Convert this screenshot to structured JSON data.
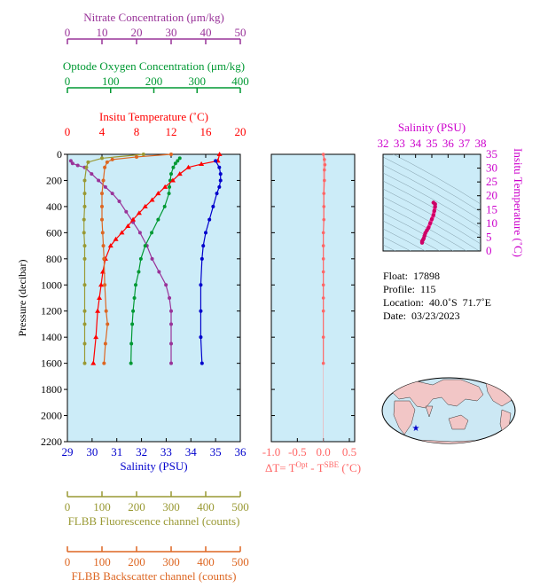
{
  "chart_data": [
    {
      "type": "line",
      "panel": "profiles",
      "y_axis": {
        "label": "Pressure (decibar)",
        "range": [
          0,
          2200
        ],
        "inverted": true,
        "ticks": [
          0,
          200,
          400,
          600,
          800,
          1000,
          1200,
          1400,
          1600,
          1800,
          2000,
          2200
        ]
      },
      "top_axes": [
        {
          "label": "Nitrate Concentration (μm/kg)",
          "range": [
            0,
            50
          ],
          "ticks": [
            0,
            10,
            20,
            30,
            40,
            50
          ],
          "color": "#993399"
        },
        {
          "label": "Optode Oxygen Concentration (μm/kg)",
          "range": [
            0,
            400
          ],
          "ticks": [
            0,
            100,
            200,
            300,
            400
          ],
          "color": "#009933"
        },
        {
          "label": "Insitu Temperature (˚C)",
          "range": [
            0,
            20
          ],
          "ticks": [
            0,
            4,
            8,
            12,
            16,
            20
          ],
          "color": "#ff0000"
        }
      ],
      "bottom_axes": [
        {
          "label": "Salinity (PSU)",
          "range": [
            29,
            36
          ],
          "ticks": [
            29,
            30,
            31,
            32,
            33,
            34,
            35,
            36
          ],
          "color": "#0000cc"
        },
        {
          "label": "FLBB Fluorescence channel (counts)",
          "range": [
            0,
            500
          ],
          "ticks": [
            0,
            100,
            200,
            300,
            400,
            500
          ],
          "color": "#999933"
        },
        {
          "label": "FLBB Backscatter channel (counts)",
          "range": [
            0,
            500
          ],
          "ticks": [
            0,
            100,
            200,
            300,
            400,
            500
          ],
          "color": "#dd6622"
        }
      ],
      "series": [
        {
          "name": "Nitrate Concentration",
          "color": "#993399",
          "axis": "Nitrate Concentration (μm/kg)",
          "x": [
            1,
            1.5,
            3,
            5,
            7,
            9,
            11,
            13,
            15,
            17,
            19,
            21,
            23,
            24.5,
            26.5,
            28.5,
            29.5,
            30,
            30,
            30,
            30
          ],
          "p": [
            50,
            70,
            85,
            100,
            150,
            200,
            250,
            300,
            360,
            440,
            520,
            600,
            700,
            800,
            900,
            1000,
            1100,
            1200,
            1300,
            1450,
            1600
          ]
        },
        {
          "name": "Optode Oxygen Concentration",
          "color": "#009933",
          "axis": "Optode Oxygen Concentration (μm/kg)",
          "x": [
            260,
            255,
            250,
            245,
            240,
            238,
            236,
            235,
            225,
            210,
            195,
            180,
            170,
            165,
            158,
            155,
            152,
            150,
            148,
            147
          ],
          "p": [
            30,
            50,
            70,
            100,
            150,
            200,
            250,
            300,
            400,
            500,
            600,
            700,
            800,
            900,
            1000,
            1100,
            1200,
            1300,
            1450,
            1600
          ]
        },
        {
          "name": "Insitu Temperature",
          "color": "#ff0000",
          "axis": "Insitu Temperature (˚C)",
          "x": [
            17.6,
            17.4,
            15.5,
            14,
            13,
            12.2,
            11.3,
            10.5,
            9.8,
            9,
            8.3,
            7.6,
            7,
            6.3,
            5.6,
            5,
            4.4,
            4.1,
            3.9,
            3.7,
            3.5,
            3.3,
            3
          ],
          "p": [
            0,
            50,
            75,
            100,
            150,
            200,
            250,
            300,
            350,
            400,
            450,
            500,
            550,
            600,
            650,
            700,
            800,
            900,
            1000,
            1100,
            1200,
            1400,
            1600
          ]
        },
        {
          "name": "Salinity",
          "color": "#0000cc",
          "axis": "Salinity (PSU)",
          "x": [
            35.0,
            35.15,
            35.2,
            35.2,
            35.15,
            35.05,
            34.9,
            34.75,
            34.6,
            34.5,
            34.45,
            34.4,
            34.4,
            34.4,
            34.45
          ],
          "p": [
            50,
            100,
            150,
            200,
            250,
            300,
            400,
            500,
            600,
            700,
            800,
            1000,
            1200,
            1400,
            1600
          ]
        },
        {
          "name": "FLBB Fluorescence",
          "color": "#999933",
          "axis": "FLBB Fluorescence channel (counts)",
          "x": [
            220,
            100,
            60,
            55,
            50,
            50,
            50,
            48,
            48,
            50,
            50,
            50,
            50,
            50,
            50,
            50
          ],
          "p": [
            0,
            30,
            60,
            100,
            200,
            300,
            400,
            500,
            600,
            700,
            800,
            1000,
            1200,
            1300,
            1450,
            1600
          ]
        },
        {
          "name": "FLBB Backscatter",
          "color": "#dd6622",
          "axis": "FLBB Backscatter channel (counts)",
          "x": [
            300,
            200,
            130,
            115,
            108,
            104,
            100,
            100,
            100,
            102,
            104,
            106,
            108,
            112,
            116,
            110,
            106
          ],
          "p": [
            0,
            20,
            40,
            60,
            100,
            200,
            300,
            400,
            500,
            600,
            700,
            800,
            1000,
            1200,
            1300,
            1450,
            1600
          ]
        }
      ]
    },
    {
      "type": "line",
      "panel": "temperature-difference",
      "x_axis": {
        "label_main": "ΔT= T",
        "label_sup1": "Opt",
        "label_mid": " - T",
        "label_sup2": "SBE",
        "label_end": " (˚C)",
        "range": [
          -1.0,
          0.5
        ],
        "ticks": [
          -1.0,
          -0.5,
          0.0,
          0.5
        ],
        "tick_labels": [
          "-1.0",
          "-0.5",
          "0.0",
          "0.5"
        ],
        "color": "#ff6666"
      },
      "series": [
        {
          "name": "ΔT",
          "color": "#ff6666",
          "x": [
            0.0,
            0.02,
            0.03,
            0.02,
            0.02,
            0.01,
            0.01,
            0.01,
            0.0,
            0.0,
            0.0,
            0.0,
            0.0,
            0.0,
            0.0,
            0.0,
            0.0
          ],
          "p": [
            0,
            40,
            80,
            120,
            200,
            300,
            400,
            500,
            600,
            700,
            800,
            900,
            1000,
            1100,
            1200,
            1400,
            1600
          ]
        }
      ]
    },
    {
      "type": "scatter",
      "panel": "t-s-diagram",
      "x_axis": {
        "label": "Salinity (PSU)",
        "range": [
          32,
          38
        ],
        "ticks": [
          32,
          33,
          34,
          35,
          36,
          37,
          38
        ],
        "color": "#cc00cc"
      },
      "y_axis": {
        "label": "Insitu Temperature (˚C)",
        "range": [
          0,
          35
        ],
        "ticks": [
          0,
          5,
          10,
          15,
          20,
          25,
          30,
          35
        ],
        "color": "#cc00cc"
      },
      "series": [
        {
          "name": "T-S",
          "color": "#ff3399",
          "x": [
            34.4,
            34.4,
            34.45,
            34.5,
            34.55,
            34.6,
            34.7,
            34.8,
            34.9,
            35.0,
            35.1,
            35.15,
            35.2,
            35.2,
            35.1
          ],
          "y": [
            3.0,
            3.5,
            4.0,
            4.5,
            5.5,
            6.5,
            7.5,
            8.5,
            10.0,
            11.5,
            13.0,
            14.5,
            16.0,
            17.0,
            17.5
          ]
        }
      ]
    }
  ],
  "float_info": {
    "float": "Float:  17898",
    "profile": "Profile:  115",
    "location": "Location:  40.0˚S  71.7˚E",
    "date": "Date:  03/23/2023"
  },
  "map": {
    "marker": "float-location",
    "marker_color": "#0000cc",
    "ocean_color": "#cce8f4",
    "land_color": "#f2c6c6"
  }
}
